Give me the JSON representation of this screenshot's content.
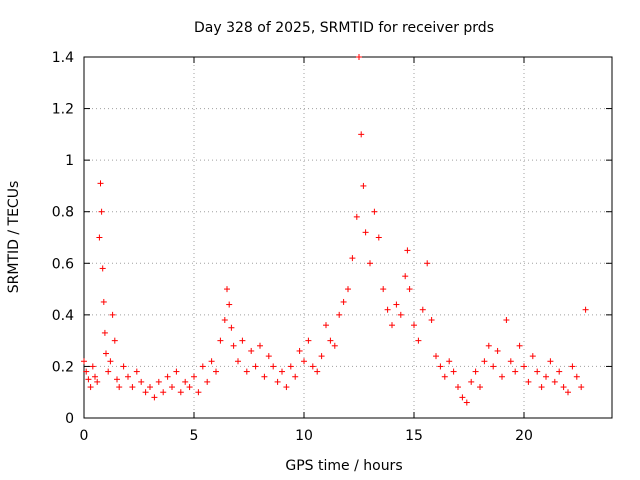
{
  "chart_data": {
    "type": "scatter",
    "title": "Day 328 of 2025, SRMTID for receiver prds",
    "xlabel": "GPS time / hours",
    "ylabel": "SRMTID / TECUs",
    "xlim": [
      0,
      24
    ],
    "ylim": [
      0,
      1.4
    ],
    "xticks": [
      0,
      5,
      10,
      15,
      20
    ],
    "xtick_labels": [
      "0",
      "5",
      "10",
      "15",
      "20"
    ],
    "yticks": [
      0,
      0.2,
      0.4,
      0.6,
      0.8,
      1.0,
      1.2,
      1.4
    ],
    "ytick_labels": [
      "0",
      "0.2",
      "0.4",
      "0.6",
      "0.8",
      "1",
      "1.2",
      "1.4"
    ],
    "grid": true,
    "marker": "+",
    "series": [
      {
        "name": "SRMTID",
        "color": "#ff0000",
        "x": [
          0.0,
          0.1,
          0.2,
          0.3,
          0.4,
          0.5,
          0.6,
          0.7,
          0.75,
          0.8,
          0.85,
          0.9,
          0.95,
          1.0,
          1.1,
          1.2,
          1.3,
          1.4,
          1.5,
          1.6,
          1.8,
          2.0,
          2.2,
          2.4,
          2.6,
          2.8,
          3.0,
          3.2,
          3.4,
          3.6,
          3.8,
          4.0,
          4.2,
          4.4,
          4.6,
          4.8,
          5.0,
          5.2,
          5.4,
          5.6,
          5.8,
          6.0,
          6.2,
          6.4,
          6.5,
          6.6,
          6.7,
          6.8,
          7.0,
          7.2,
          7.4,
          7.6,
          7.8,
          8.0,
          8.2,
          8.4,
          8.6,
          8.8,
          9.0,
          9.2,
          9.4,
          9.6,
          9.8,
          10.0,
          10.2,
          10.4,
          10.6,
          10.8,
          11.0,
          11.2,
          11.4,
          11.6,
          11.8,
          12.0,
          12.2,
          12.4,
          12.5,
          12.6,
          12.7,
          12.8,
          13.0,
          13.2,
          13.4,
          13.6,
          13.8,
          14.0,
          14.2,
          14.4,
          14.6,
          14.7,
          14.8,
          15.0,
          15.2,
          15.4,
          15.6,
          15.8,
          16.0,
          16.2,
          16.4,
          16.6,
          16.8,
          17.0,
          17.2,
          17.4,
          17.6,
          17.8,
          18.0,
          18.2,
          18.4,
          18.6,
          18.8,
          19.0,
          19.2,
          19.4,
          19.6,
          19.8,
          20.0,
          20.2,
          20.4,
          20.6,
          20.8,
          21.0,
          21.2,
          21.4,
          21.6,
          21.8,
          22.0,
          22.2,
          22.4,
          22.6,
          22.8
        ],
        "y": [
          0.22,
          0.18,
          0.15,
          0.12,
          0.2,
          0.16,
          0.14,
          0.7,
          0.91,
          0.8,
          0.58,
          0.45,
          0.33,
          0.25,
          0.18,
          0.22,
          0.4,
          0.3,
          0.15,
          0.12,
          0.2,
          0.16,
          0.12,
          0.18,
          0.14,
          0.1,
          0.12,
          0.08,
          0.14,
          0.1,
          0.16,
          0.12,
          0.18,
          0.1,
          0.14,
          0.12,
          0.16,
          0.1,
          0.2,
          0.14,
          0.22,
          0.18,
          0.3,
          0.38,
          0.5,
          0.44,
          0.35,
          0.28,
          0.22,
          0.3,
          0.18,
          0.26,
          0.2,
          0.28,
          0.16,
          0.24,
          0.2,
          0.14,
          0.18,
          0.12,
          0.2,
          0.16,
          0.26,
          0.22,
          0.3,
          0.2,
          0.18,
          0.24,
          0.36,
          0.3,
          0.28,
          0.4,
          0.45,
          0.5,
          0.62,
          0.78,
          1.4,
          1.1,
          0.9,
          0.72,
          0.6,
          0.8,
          0.7,
          0.5,
          0.42,
          0.36,
          0.44,
          0.4,
          0.55,
          0.65,
          0.5,
          0.36,
          0.3,
          0.42,
          0.6,
          0.38,
          0.24,
          0.2,
          0.16,
          0.22,
          0.18,
          0.12,
          0.08,
          0.06,
          0.14,
          0.18,
          0.12,
          0.22,
          0.28,
          0.2,
          0.26,
          0.16,
          0.38,
          0.22,
          0.18,
          0.28,
          0.2,
          0.14,
          0.24,
          0.18,
          0.12,
          0.16,
          0.22,
          0.14,
          0.18,
          0.12,
          0.1,
          0.2,
          0.16,
          0.12,
          0.42
        ]
      }
    ]
  }
}
